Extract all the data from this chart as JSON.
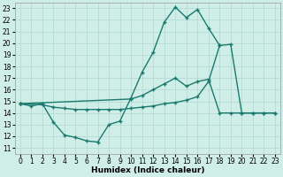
{
  "xlabel": "Humidex (Indice chaleur)",
  "ylabel": "",
  "xlim": [
    -0.5,
    23.5
  ],
  "ylim": [
    10.5,
    23.5
  ],
  "yticks": [
    11,
    12,
    13,
    14,
    15,
    16,
    17,
    18,
    19,
    20,
    21,
    22,
    23
  ],
  "xticks": [
    0,
    1,
    2,
    3,
    4,
    5,
    6,
    7,
    8,
    9,
    10,
    11,
    12,
    13,
    14,
    15,
    16,
    17,
    18,
    19,
    20,
    21,
    22,
    23
  ],
  "bg_color": "#d0eee8",
  "grid_color": "#b0d8d0",
  "line_color": "#1a7a6e",
  "lines": [
    {
      "x": [
        0,
        1,
        2,
        3,
        4,
        5,
        6,
        7,
        8,
        9,
        10,
        11,
        12,
        13,
        14,
        15,
        16,
        17,
        18
      ],
      "y": [
        14.8,
        14.6,
        14.8,
        13.2,
        12.1,
        11.9,
        11.6,
        11.5,
        13.0,
        13.3,
        15.3,
        17.5,
        19.2,
        21.8,
        23.1,
        22.2,
        22.9,
        21.3,
        19.8
      ]
    },
    {
      "x": [
        0,
        2,
        3,
        4,
        5,
        6,
        7,
        8,
        9,
        10,
        11,
        12,
        13,
        14,
        15,
        16,
        17,
        18,
        19,
        20,
        21,
        22,
        23
      ],
      "y": [
        14.8,
        14.7,
        14.5,
        14.4,
        14.3,
        14.3,
        14.3,
        14.3,
        14.3,
        14.4,
        14.5,
        14.6,
        14.8,
        14.9,
        15.1,
        15.4,
        16.7,
        19.8,
        19.9,
        14.0,
        14.0,
        14.0,
        14.0
      ]
    },
    {
      "x": [
        0,
        10,
        11,
        12,
        13,
        14,
        15,
        16,
        17,
        18,
        19,
        20,
        21,
        22,
        23
      ],
      "y": [
        14.8,
        15.2,
        15.5,
        16.0,
        16.5,
        17.0,
        16.3,
        16.7,
        16.9,
        14.0,
        14.0,
        14.0,
        14.0,
        14.0,
        14.0
      ]
    }
  ],
  "line_width": 1.0,
  "marker": "+",
  "marker_size": 3.5,
  "font_size": 5.5,
  "xlabel_fontsize": 6.5
}
